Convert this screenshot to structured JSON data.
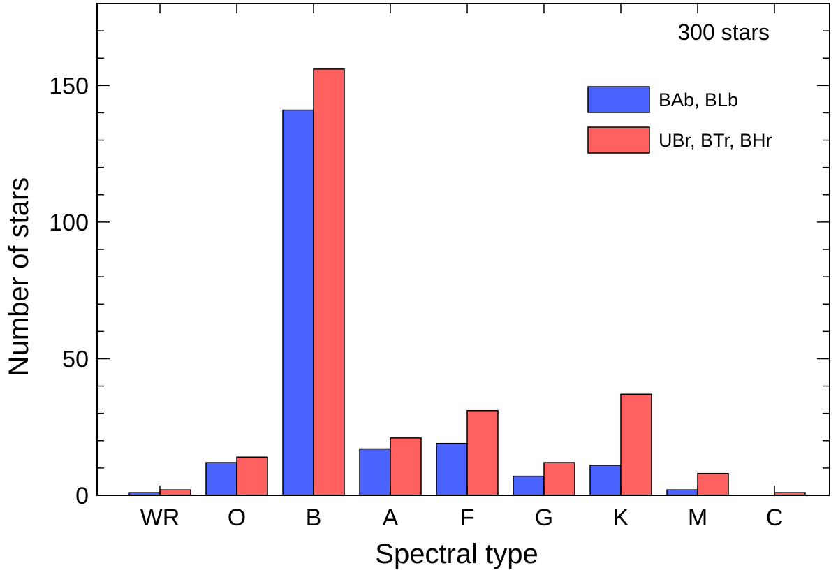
{
  "chart_data": {
    "type": "bar",
    "categories": [
      "WR",
      "O",
      "B",
      "A",
      "F",
      "G",
      "K",
      "M",
      "C"
    ],
    "series": [
      {
        "name": "BAb, BLb",
        "color": "#4a63ff",
        "values": [
          1,
          12,
          141,
          17,
          19,
          7,
          11,
          2,
          0
        ]
      },
      {
        "name": "UBr, BTr, BHr",
        "color": "#ff6060",
        "values": [
          2,
          14,
          156,
          21,
          31,
          12,
          37,
          8,
          1
        ]
      }
    ],
    "xlabel": "Spectral type",
    "ylabel": "Number of stars",
    "ylim": [
      0,
      180
    ],
    "yticks": [
      "0",
      "50",
      "100",
      "150"
    ],
    "annotation": "300 stars",
    "legend_position": "top-right",
    "grid": false
  }
}
